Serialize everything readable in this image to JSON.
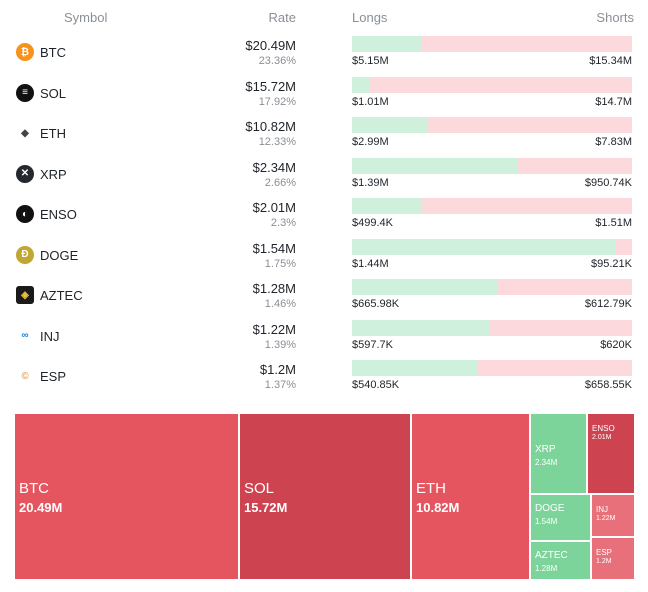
{
  "header": {
    "symbol": "Symbol",
    "rate": "Rate",
    "longs": "Longs",
    "shorts": "Shorts"
  },
  "rows": [
    {
      "symbol": "BTC",
      "icon": "bitcoin-icon",
      "icon_color": "#f7931a",
      "glyph": "₿",
      "rate": "$20.49M",
      "pct": "23.36%",
      "long_frac": 0.25,
      "longs": "$5.15M",
      "shorts": "$15.34M"
    },
    {
      "symbol": "SOL",
      "icon": "solana-icon",
      "icon_color": "#111111",
      "glyph": "≡",
      "rate": "$15.72M",
      "pct": "17.92%",
      "long_frac": 0.06,
      "longs": "$1.01M",
      "shorts": "$14.7M"
    },
    {
      "symbol": "ETH",
      "icon": "ethereum-icon",
      "icon_color": "#ffffff",
      "glyph": "◆",
      "rate": "$10.82M",
      "pct": "12.33%",
      "long_frac": 0.27,
      "longs": "$2.99M",
      "shorts": "$7.83M"
    },
    {
      "symbol": "XRP",
      "icon": "xrp-icon",
      "icon_color": "#23292f",
      "glyph": "✕",
      "rate": "$2.34M",
      "pct": "2.66%",
      "long_frac": 0.59,
      "longs": "$1.39M",
      "shorts": "$950.74K"
    },
    {
      "symbol": "ENSO",
      "icon": "enso-icon",
      "icon_color": "#111111",
      "glyph": "◐",
      "rate": "$2.01M",
      "pct": "2.3%",
      "long_frac": 0.25,
      "longs": "$499.4K",
      "shorts": "$1.51M"
    },
    {
      "symbol": "DOGE",
      "icon": "doge-icon",
      "icon_color": "#c2a633",
      "glyph": "Ð",
      "rate": "$1.54M",
      "pct": "1.75%",
      "long_frac": 0.94,
      "longs": "$1.44M",
      "shorts": "$95.21K"
    },
    {
      "symbol": "AZTEC",
      "icon": "aztec-icon",
      "icon_color": "#1a1a1a",
      "glyph": "◈",
      "rate": "$1.28M",
      "pct": "1.46%",
      "long_frac": 0.52,
      "longs": "$665.98K",
      "shorts": "$612.79K"
    },
    {
      "symbol": "INJ",
      "icon": "injective-icon",
      "icon_color": "#ffffff",
      "glyph": "∞",
      "rate": "$1.22M",
      "pct": "1.39%",
      "long_frac": 0.49,
      "longs": "$597.7K",
      "shorts": "$620K"
    },
    {
      "symbol": "ESP",
      "icon": "esp-icon",
      "icon_color": "#ffffff",
      "glyph": "©",
      "rate": "$1.2M",
      "pct": "1.37%",
      "long_frac": 0.45,
      "longs": "$540.85K",
      "shorts": "$658.55K"
    }
  ],
  "treemap": [
    {
      "label": "BTC",
      "value": "20.49M",
      "color": "#e55560"
    },
    {
      "label": "SOL",
      "value": "15.72M",
      "color": "#ce4350"
    },
    {
      "label": "ETH",
      "value": "10.82M",
      "color": "#e55560"
    },
    {
      "label": "XRP",
      "value": "2.34M",
      "color": "#7dd49a"
    },
    {
      "label": "ENSO",
      "value": "2.01M",
      "color": "#ce4350"
    },
    {
      "label": "DOGE",
      "value": "1.54M",
      "color": "#7dd49a"
    },
    {
      "label": "INJ",
      "value": "1.22M",
      "color": "#e8707a"
    },
    {
      "label": "AZTEC",
      "value": "1.28M",
      "color": "#7dd49a"
    },
    {
      "label": "ESP",
      "value": "1.2M",
      "color": "#e8707a"
    }
  ],
  "colors": {
    "long_bar": "#cff0dc",
    "short_bar": "#fcd9dc",
    "muted_text": "#8a8f96"
  }
}
